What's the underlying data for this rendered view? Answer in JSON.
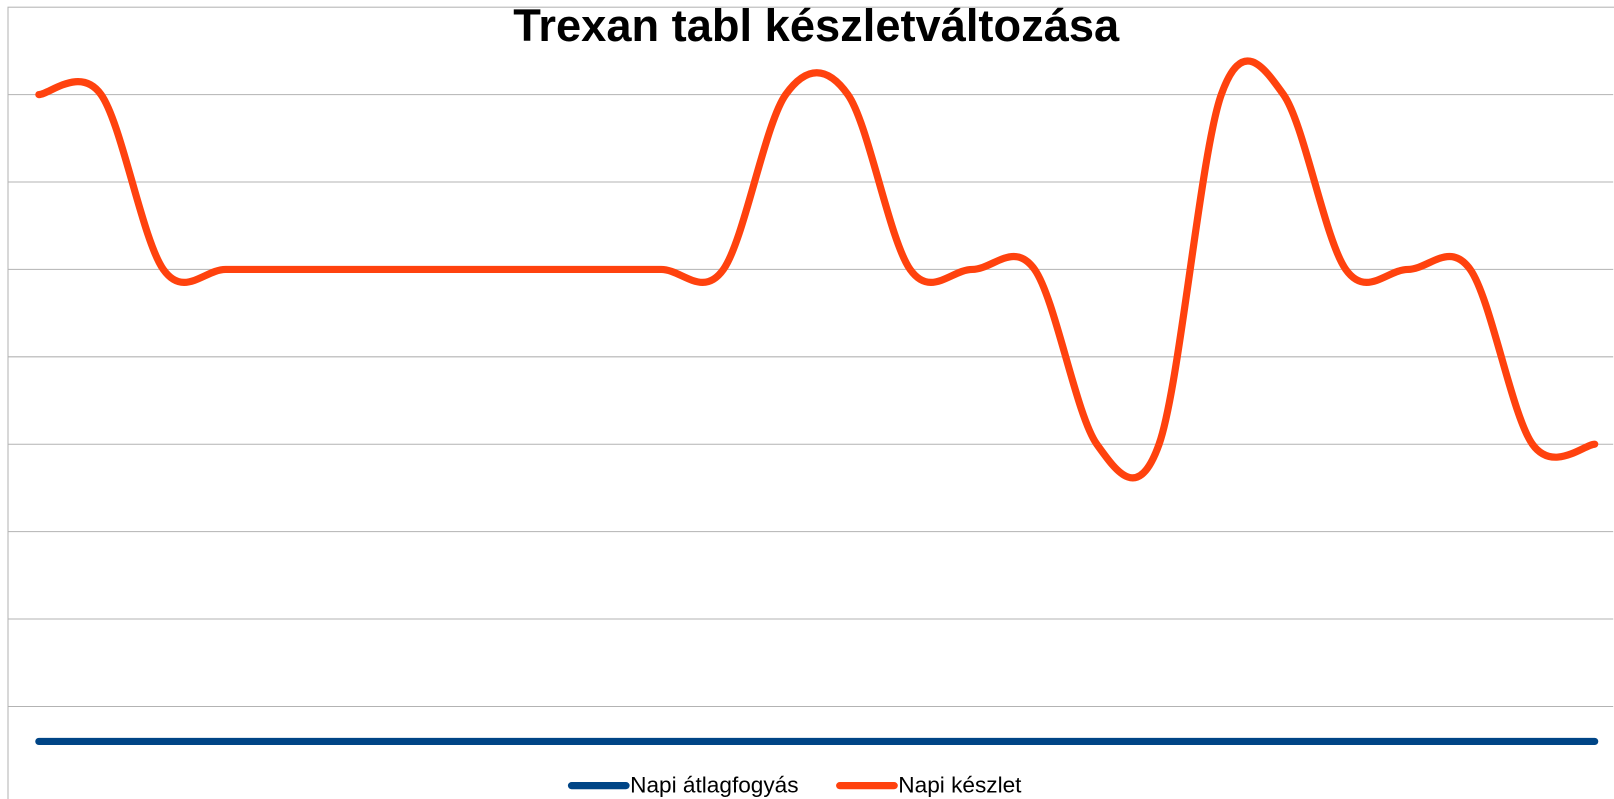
{
  "chart_data": {
    "type": "line",
    "title": "Trexan tabl készletváltozása",
    "categories": [
      null,
      null,
      null,
      null,
      null,
      null,
      null,
      null,
      null,
      null,
      null,
      null,
      null,
      null,
      null,
      null,
      null,
      null,
      null,
      null,
      null,
      null,
      null,
      null,
      null,
      null
    ],
    "series": [
      {
        "name": "Napi átlagfogyás",
        "color": "#004586",
        "values": [
          0.6,
          0.6,
          0.6,
          0.6,
          0.6,
          0.6,
          0.6,
          0.6,
          0.6,
          0.6,
          0.6,
          0.6,
          0.6,
          0.6,
          0.6,
          0.6,
          0.6,
          0.6,
          0.6,
          0.6,
          0.6,
          0.6,
          0.6,
          0.6,
          0.6,
          0.6
        ]
      },
      {
        "name": "Napi készlet",
        "color": "#ff420e",
        "values": [
          8,
          8,
          6,
          6,
          6,
          6,
          6,
          6,
          6,
          6,
          6,
          6,
          8,
          8,
          6,
          6,
          6,
          4,
          4,
          8,
          8,
          6,
          6,
          6,
          4,
          4
        ]
      }
    ],
    "ylim": [
      0,
      9
    ],
    "yticks": [
      1,
      2,
      3,
      4,
      5,
      6,
      7,
      8
    ],
    "grid": true,
    "smooth": true,
    "legend": "bottom"
  }
}
